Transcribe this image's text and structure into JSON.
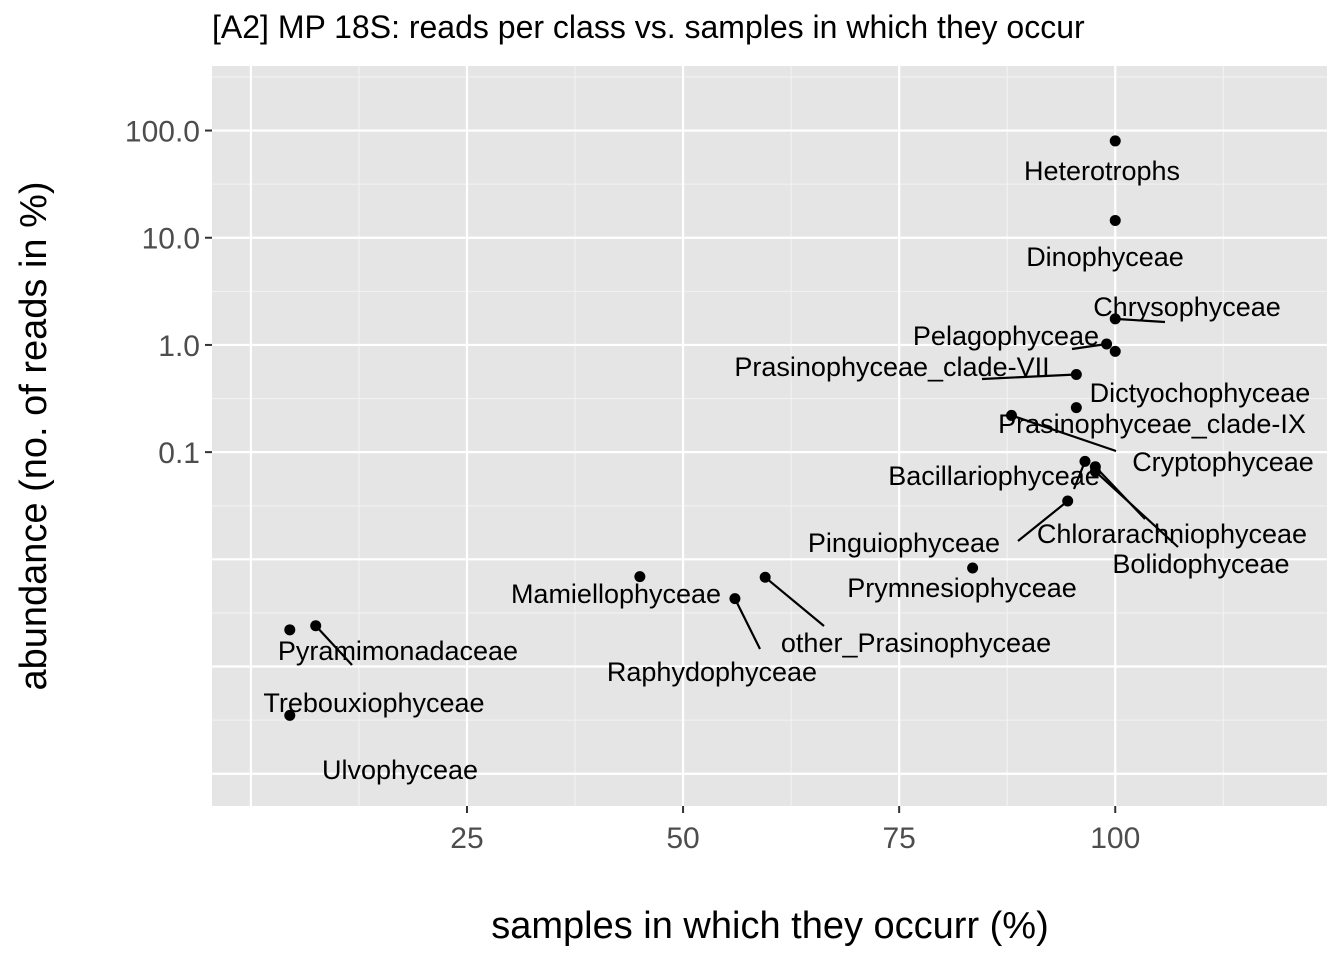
{
  "chart_data": {
    "type": "scatter",
    "title": "[A2] MP 18S: reads per class vs. samples in which they occur",
    "xlabel": "samples in which they occurr (%)",
    "ylabel": "abundance (no. of reads in %)",
    "x_scale": "linear",
    "y_scale": "log10",
    "xlim": [
      -4.5,
      124.5
    ],
    "ylim": [
      5e-05,
      400
    ],
    "x_ticks": [
      "25",
      "50",
      "75",
      "100"
    ],
    "y_ticks": [
      "0.1",
      "1.0",
      "10.0",
      "100.0"
    ],
    "grid": true,
    "legend": "none",
    "points": [
      {
        "label": "Heterotrophs",
        "x": 100,
        "y": 80
      },
      {
        "label": "Dinophyceae",
        "x": 100,
        "y": 14.5
      },
      {
        "label": "Chrysophyceae",
        "x": 100,
        "y": 1.75
      },
      {
        "label": "Pelagophyceae",
        "x": 99,
        "y": 1.02
      },
      {
        "label": "Dictyochophyceae",
        "x": 100,
        "y": 0.87
      },
      {
        "label": "Prasinophyceae_clade-VII",
        "x": 95.5,
        "y": 0.53
      },
      {
        "label": "Prasinophyceae_clade-IX",
        "x": 95.5,
        "y": 0.26
      },
      {
        "label": "Cryptophyceae",
        "x": 88,
        "y": 0.22
      },
      {
        "label": "Bacillariophyceae",
        "x": 96.5,
        "y": 0.082
      },
      {
        "label": "Chlorarachniophyceae",
        "x": 97.7,
        "y": 0.073
      },
      {
        "label": "Bolidophyceae",
        "x": 97.7,
        "y": 0.066
      },
      {
        "label": "Pinguiophyceae",
        "x": 94.5,
        "y": 0.035
      },
      {
        "label": "Prymnesiophyceae",
        "x": 83.5,
        "y": 0.0083
      },
      {
        "label": "Mamiellophyceae",
        "x": 45,
        "y": 0.0069
      },
      {
        "label": "other_Prasinophyceae",
        "x": 59.5,
        "y": 0.0068
      },
      {
        "label": "Raphydophyceae",
        "x": 56,
        "y": 0.0043
      },
      {
        "label": "Pyramimonadaceae",
        "x": 7.5,
        "y": 0.0024
      },
      {
        "label": "Trebouxiophyceae",
        "x": 4.5,
        "y": 0.0022
      },
      {
        "label": "Ulvophyceae",
        "x": 4.5,
        "y": 0.00035
      }
    ]
  }
}
